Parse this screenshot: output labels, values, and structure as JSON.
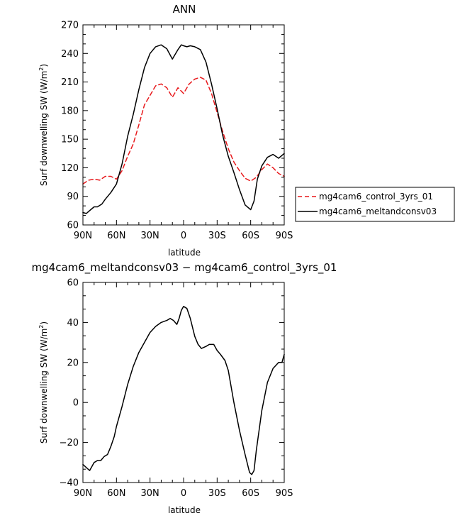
{
  "chart_data": [
    {
      "type": "line",
      "title": "ANN",
      "xlabel": "latitude",
      "ylabel_main": "Surf downwelling SW (W/m",
      "ylabel_sup": "2",
      "ylabel_close": ")",
      "xlim": [
        90,
        -90
      ],
      "ylim": [
        60,
        270
      ],
      "xticks": [
        90,
        60,
        30,
        0,
        -30,
        -60,
        -90
      ],
      "xtick_labels": [
        "90N",
        "60N",
        "30N",
        "0",
        "30S",
        "60S",
        "90S"
      ],
      "yticks": [
        60,
        90,
        120,
        150,
        180,
        210,
        240,
        270
      ],
      "ytick_labels": [
        "60",
        "90",
        "120",
        "150",
        "180",
        "210",
        "240",
        "270"
      ],
      "legend_position": "right",
      "series": [
        {
          "name": "mg4cam6_control_3yrs_01",
          "color": "#e8191c",
          "dash": "dashed",
          "x": [
            90,
            85,
            80,
            75,
            70,
            65,
            60,
            55,
            50,
            45,
            40,
            35,
            30,
            25,
            20,
            15,
            10,
            5,
            0,
            -5,
            -10,
            -15,
            -20,
            -25,
            -30,
            -35,
            -40,
            -45,
            -50,
            -55,
            -60,
            -65,
            -70,
            -75,
            -80,
            -85,
            -90
          ],
          "y": [
            103,
            107,
            108,
            107,
            111,
            111,
            108,
            117,
            132,
            145,
            165,
            186,
            196,
            206,
            208,
            204,
            194,
            204,
            198,
            208,
            213,
            215,
            212,
            198,
            178,
            158,
            140,
            126,
            117,
            109,
            106,
            110,
            118,
            124,
            120,
            114,
            111
          ]
        },
        {
          "name": "mg4cam6_meltandconsv03",
          "color": "#000000",
          "dash": "solid",
          "x": [
            90,
            87,
            83,
            80,
            77,
            73,
            70,
            65,
            60,
            55,
            50,
            45,
            40,
            35,
            30,
            25,
            20,
            15,
            10,
            5,
            2,
            0,
            -3,
            -6,
            -10,
            -15,
            -20,
            -25,
            -30,
            -35,
            -40,
            -45,
            -50,
            -55,
            -60,
            -63,
            -66,
            -70,
            -75,
            -80,
            -85,
            -90
          ],
          "y": [
            73,
            72,
            76,
            79,
            79,
            82,
            87,
            94,
            103,
            124,
            153,
            176,
            202,
            225,
            240,
            247,
            249,
            245,
            234,
            244,
            249,
            248,
            247,
            248,
            247,
            244,
            231,
            208,
            182,
            154,
            132,
            115,
            97,
            81,
            76,
            85,
            108,
            122,
            131,
            134,
            130,
            135
          ]
        }
      ]
    },
    {
      "type": "line",
      "title": "mg4cam6_meltandconsv03 − mg4cam6_control_3yrs_01",
      "xlabel": "latitude",
      "ylabel_main": "Surf downwelling SW (W/m",
      "ylabel_sup": "2",
      "ylabel_close": ")",
      "xlim": [
        90,
        -90
      ],
      "ylim": [
        -40,
        60
      ],
      "xticks": [
        90,
        60,
        30,
        0,
        -30,
        -60,
        -90
      ],
      "xtick_labels": [
        "90N",
        "60N",
        "30N",
        "0",
        "30S",
        "60S",
        "90S"
      ],
      "yticks": [
        -40,
        -20,
        0,
        20,
        40,
        60
      ],
      "ytick_labels": [
        "−40",
        "−20",
        "0",
        "20",
        "40",
        "60"
      ],
      "series": [
        {
          "color": "#000000",
          "dash": "solid",
          "x": [
            90,
            88,
            86,
            84,
            80,
            77,
            74,
            71,
            68,
            65,
            62,
            60,
            55,
            50,
            45,
            40,
            35,
            30,
            25,
            20,
            15,
            12,
            9,
            6,
            4,
            2,
            0,
            -3,
            -6,
            -10,
            -13,
            -16,
            -20,
            -23,
            -27,
            -30,
            -33,
            -37,
            -40,
            -45,
            -50,
            -55,
            -59,
            -61,
            -63,
            -65,
            -70,
            -75,
            -80,
            -85,
            -88,
            -90
          ],
          "y": [
            -31,
            -32,
            -33,
            -34,
            -30,
            -29,
            -29,
            -27,
            -26,
            -22,
            -17,
            -12,
            -2,
            9,
            18,
            25,
            30,
            35,
            38,
            40,
            41,
            42,
            41,
            39,
            42,
            46,
            48,
            47,
            42,
            33,
            29,
            27,
            28,
            29,
            29,
            26,
            24,
            21,
            16,
            0,
            -14,
            -26,
            -35,
            -36,
            -34,
            -24,
            -4,
            10,
            17,
            20,
            20,
            24
          ]
        }
      ]
    }
  ]
}
